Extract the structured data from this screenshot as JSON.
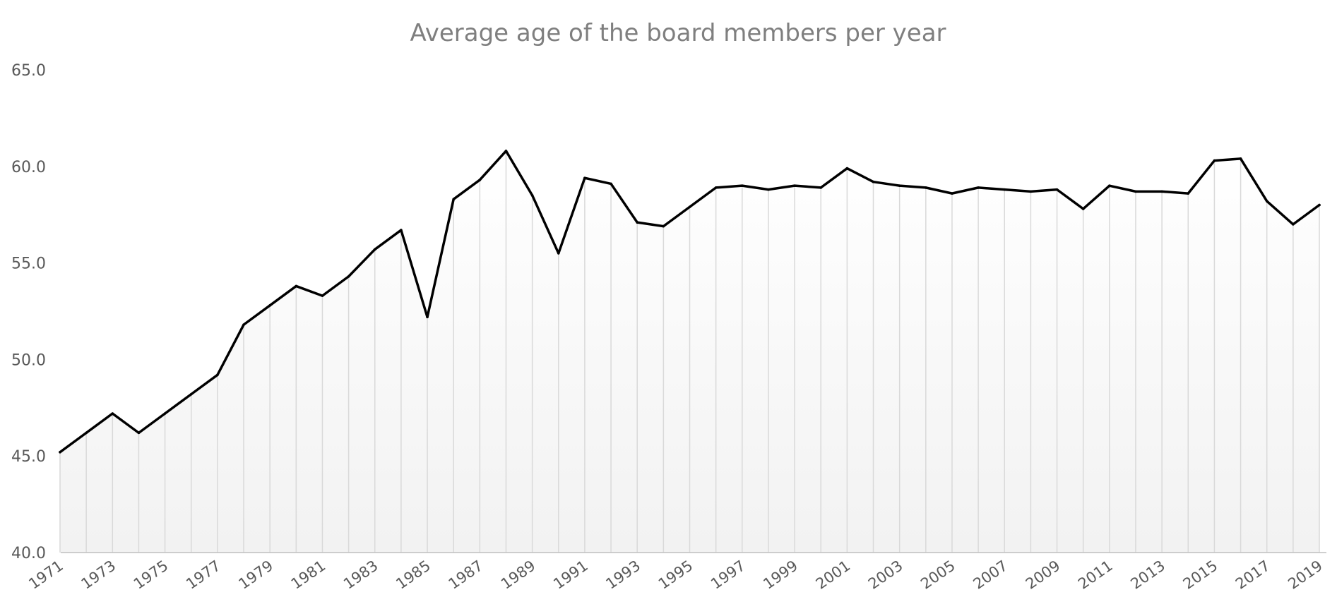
{
  "chart_data": {
    "type": "line",
    "title": "Average age of the board members per year",
    "xlabel": "",
    "ylabel": "",
    "ylim": [
      40.0,
      65.0
    ],
    "y_ticks": [
      "40.0",
      "45.0",
      "50.0",
      "55.0",
      "60.0",
      "65.0"
    ],
    "x_tick_labels": [
      "1971",
      "1973",
      "1975",
      "1977",
      "1979",
      "1981",
      "1983",
      "1985",
      "1987",
      "1989",
      "1991",
      "1993",
      "1995",
      "1997",
      "1999",
      "2001",
      "2003",
      "2005",
      "2007",
      "2009",
      "2011",
      "2013",
      "2015",
      "2017",
      "2019"
    ],
    "x": [
      1971,
      1972,
      1973,
      1974,
      1975,
      1976,
      1977,
      1978,
      1979,
      1980,
      1981,
      1982,
      1983,
      1984,
      1985,
      1986,
      1987,
      1988,
      1989,
      1990,
      1991,
      1992,
      1993,
      1994,
      1995,
      1996,
      1997,
      1998,
      1999,
      2000,
      2001,
      2002,
      2003,
      2004,
      2005,
      2006,
      2007,
      2008,
      2009,
      2010,
      2011,
      2012,
      2013,
      2014,
      2015,
      2016,
      2017,
      2018,
      2019
    ],
    "series": [
      {
        "values": [
          45.2,
          46.2,
          47.2,
          46.2,
          47.2,
          48.2,
          49.2,
          51.8,
          52.8,
          53.8,
          53.3,
          54.3,
          55.7,
          56.7,
          52.2,
          58.3,
          59.3,
          60.8,
          58.5,
          55.5,
          59.4,
          59.1,
          57.1,
          56.9,
          57.9,
          58.9,
          59.0,
          58.8,
          59.0,
          58.9,
          59.9,
          59.2,
          59.0,
          58.9,
          58.6,
          58.9,
          58.8,
          58.7,
          58.8,
          57.8,
          59.0,
          58.7,
          58.7,
          58.6,
          60.3,
          60.4,
          58.2,
          57.0,
          58.0
        ]
      }
    ],
    "grid": false,
    "drop_lines": true,
    "legend": "none",
    "line_color": "#000000"
  }
}
